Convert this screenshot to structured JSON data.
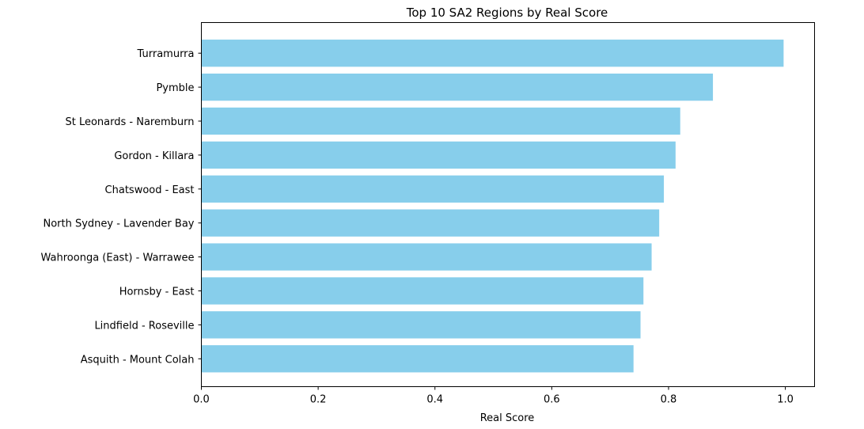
{
  "chart_data": {
    "type": "bar",
    "orientation": "horizontal",
    "title": "Top 10 SA2 Regions by Real Score",
    "xlabel": "Real Score",
    "ylabel": "",
    "xlim": [
      0,
      1.05
    ],
    "x_ticks": [
      "0.0",
      "0.2",
      "0.4",
      "0.6",
      "0.8",
      "1.0"
    ],
    "x_tick_values": [
      0,
      0.2,
      0.4,
      0.6,
      0.8,
      1.0
    ],
    "categories": [
      "Turramurra",
      "Pymble",
      "St Leonards - Naremburn",
      "Gordon - Killara",
      "Chatswood - East",
      "North Sydney - Lavender Bay",
      "Wahroonga (East) - Warrawee",
      "Hornsby - East",
      "Lindfield - Roseville",
      "Asquith - Mount Colah"
    ],
    "values": [
      0.997,
      0.876,
      0.82,
      0.812,
      0.792,
      0.784,
      0.771,
      0.757,
      0.752,
      0.74
    ],
    "bar_color": "#87ceeb",
    "grid": false,
    "legend": "none"
  }
}
